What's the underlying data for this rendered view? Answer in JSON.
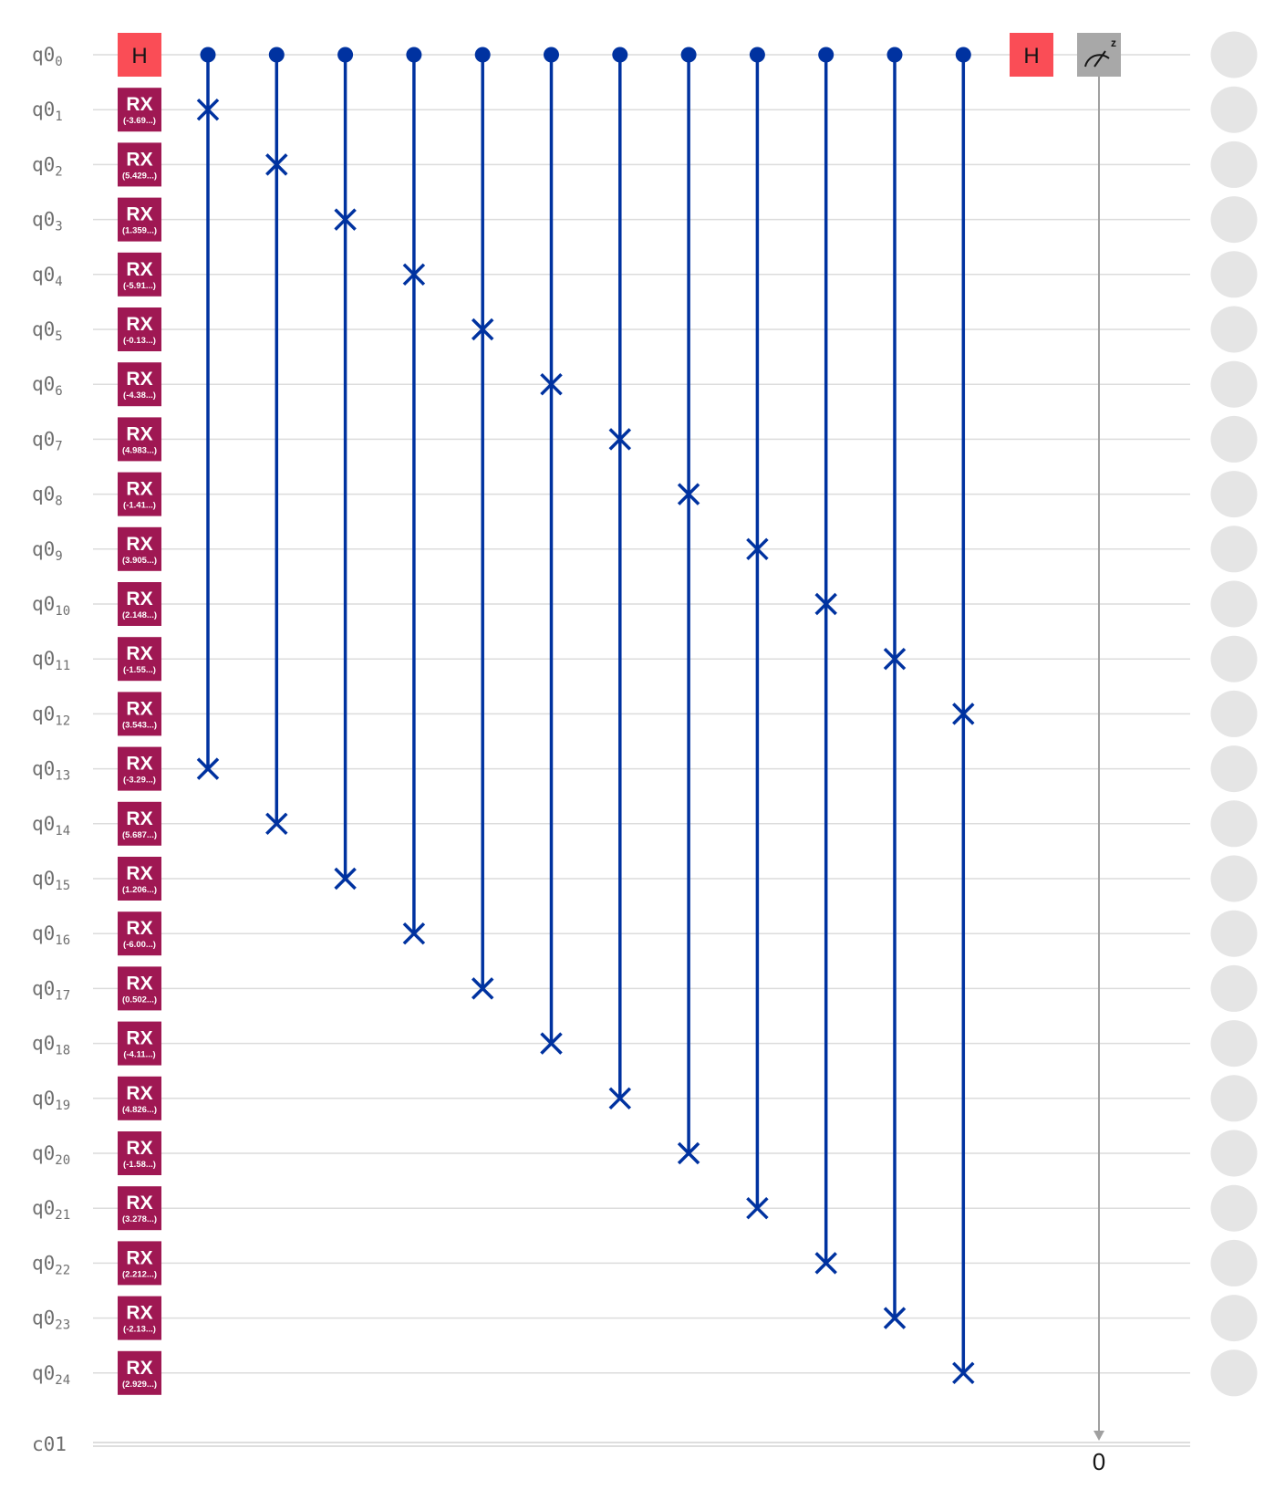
{
  "circuit": {
    "qubits": [
      "q0",
      "q0",
      "q0",
      "q0",
      "q0",
      "q0",
      "q0",
      "q0",
      "q0",
      "q0",
      "q0",
      "q0",
      "q0",
      "q0",
      "q0",
      "q0",
      "q0",
      "q0",
      "q0",
      "q0",
      "q0",
      "q0",
      "q0",
      "q0",
      "q0"
    ],
    "qubit_indices": [
      "0",
      "1",
      "2",
      "3",
      "4",
      "5",
      "6",
      "7",
      "8",
      "9",
      "10",
      "11",
      "12",
      "13",
      "14",
      "15",
      "16",
      "17",
      "18",
      "19",
      "20",
      "21",
      "22",
      "23",
      "24"
    ],
    "classical_register": "c01",
    "gate_h_label": "H",
    "gate_rx_label": "RX",
    "rx_params": [
      "(-3.69...)",
      "(5.429...)",
      "(1.359...)",
      "(-5.91...)",
      "(-0.13...)",
      "(-4.38...)",
      "(4.983...)",
      "(-1.41...)",
      "(3.905...)",
      "(2.148...)",
      "(-1.55...)",
      "(3.543...)",
      "(-3.29...)",
      "(5.687...)",
      "(1.206...)",
      "(-6.00...)",
      "(0.502...)",
      "(-4.11...)",
      "(4.826...)",
      "(-1.58...)",
      "(3.278...)",
      "(2.212...)",
      "(-2.13...)",
      "(2.929...)"
    ],
    "controlled_swaps": [
      {
        "control": 0,
        "targets": [
          1,
          13
        ]
      },
      {
        "control": 0,
        "targets": [
          2,
          14
        ]
      },
      {
        "control": 0,
        "targets": [
          3,
          15
        ]
      },
      {
        "control": 0,
        "targets": [
          4,
          16
        ]
      },
      {
        "control": 0,
        "targets": [
          5,
          17
        ]
      },
      {
        "control": 0,
        "targets": [
          6,
          18
        ]
      },
      {
        "control": 0,
        "targets": [
          7,
          19
        ]
      },
      {
        "control": 0,
        "targets": [
          8,
          20
        ]
      },
      {
        "control": 0,
        "targets": [
          9,
          21
        ]
      },
      {
        "control": 0,
        "targets": [
          10,
          22
        ]
      },
      {
        "control": 0,
        "targets": [
          11,
          23
        ]
      },
      {
        "control": 0,
        "targets": [
          12,
          24
        ]
      }
    ],
    "measure_label": "z",
    "measure_bit": "0",
    "colors": {
      "h_gate": "#fa4d56",
      "rx_gate": "#9f1853",
      "swap": "#0032a0",
      "measure": "#a8a8a8",
      "outcome_circle": "#e5e5e5"
    }
  }
}
